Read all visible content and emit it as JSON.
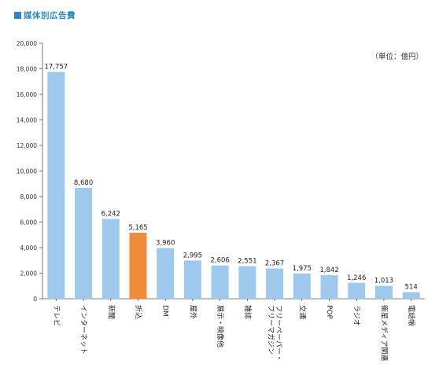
{
  "header": {
    "title": "媒体別広告費"
  },
  "unit_label": "（単位：億円）",
  "chart_data": {
    "type": "bar",
    "title": "媒体別広告費",
    "xlabel": "",
    "ylabel": "",
    "ylim": [
      0,
      20000
    ],
    "yticks": [
      0,
      2000,
      4000,
      6000,
      8000,
      10000,
      12000,
      14000,
      16000,
      18000,
      20000
    ],
    "ytick_labels": [
      "0",
      "2,000",
      "4,000",
      "6,000",
      "8,000",
      "10,000",
      "12,000",
      "14,000",
      "16,000",
      "18,000",
      "20,000"
    ],
    "grid": false,
    "categories": [
      "テレビ",
      "インターネット",
      "新聞",
      "折込",
      "DM",
      "屋外",
      "展示・映像他",
      "雑誌",
      "フリーペーパー・フリーマガジン",
      "交通",
      "POP",
      "ラジオ",
      "衛星メディア関連",
      "電話帳"
    ],
    "category_lines": [
      [
        "テレビ"
      ],
      [
        "インターネット"
      ],
      [
        "新聞"
      ],
      [
        "折込"
      ],
      [
        "DM"
      ],
      [
        "屋外"
      ],
      [
        "展示・映像他"
      ],
      [
        "雑誌"
      ],
      [
        "フリーペーパー・",
        "フリーマガジン"
      ],
      [
        "交通"
      ],
      [
        "POP"
      ],
      [
        "ラジオ"
      ],
      [
        "衛星メディア関連"
      ],
      [
        "電話帳"
      ]
    ],
    "values": [
      17757,
      8680,
      6242,
      5165,
      3960,
      2995,
      2606,
      2551,
      2367,
      1975,
      1842,
      1246,
      1013,
      514
    ],
    "value_labels": [
      "17,757",
      "8,680",
      "6,242",
      "5,165",
      "3,960",
      "2,995",
      "2,606",
      "2,551",
      "2,367",
      "1,975",
      "1,842",
      "1,246",
      "1,013",
      "514"
    ],
    "bar_color": "#9ec8ec",
    "highlight_index": 3,
    "highlight_color": "#f08b3a"
  }
}
